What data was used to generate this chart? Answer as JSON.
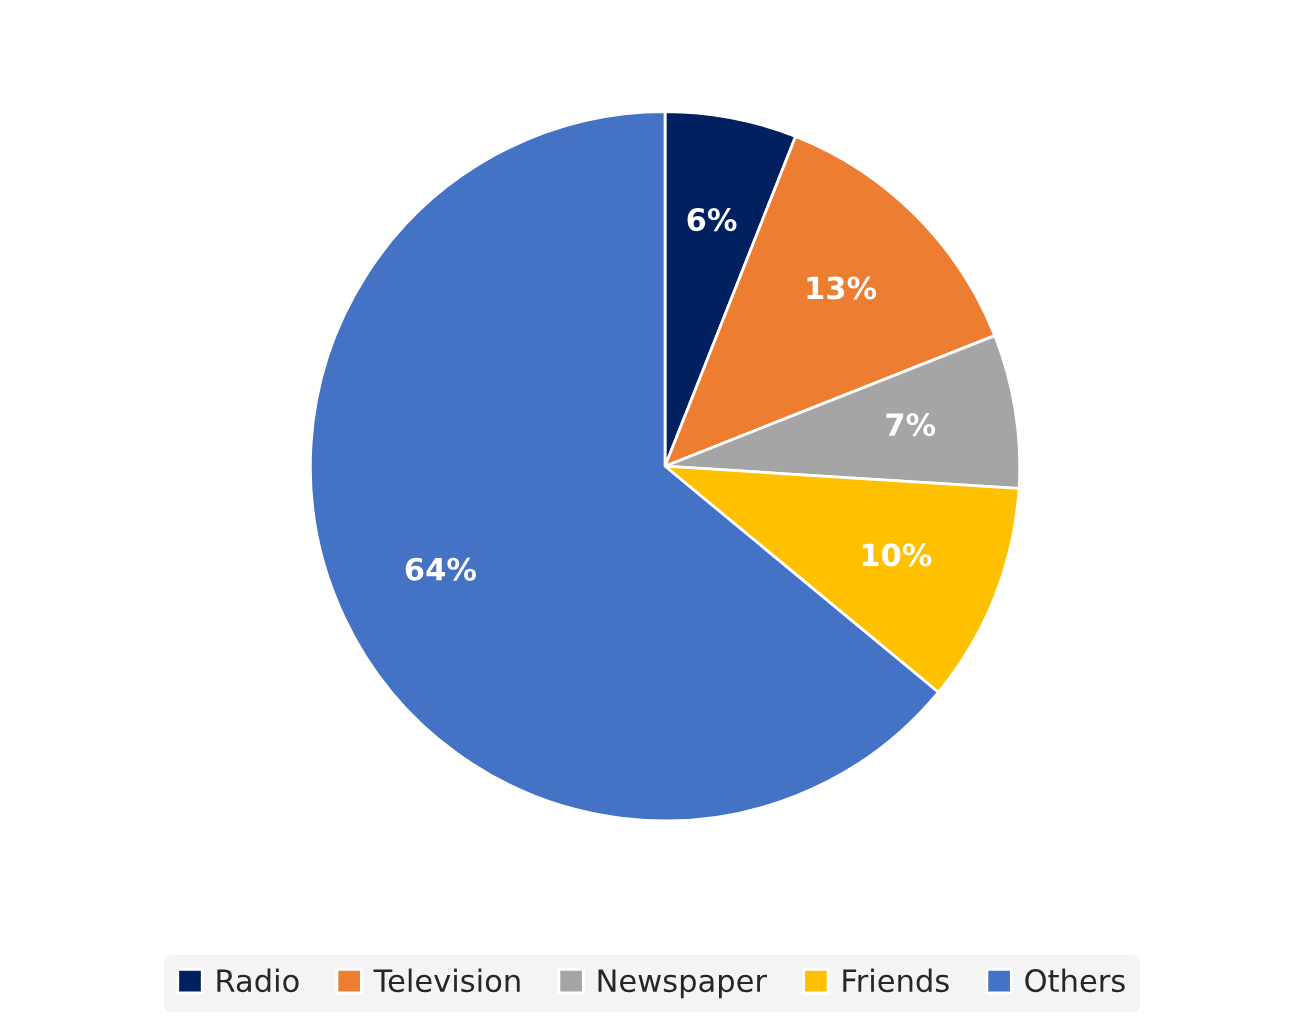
{
  "chart_data": {
    "type": "pie",
    "categories": [
      "Radio",
      "Television",
      "Newspaper",
      "Friends",
      "Others"
    ],
    "values": [
      6,
      13,
      7,
      10,
      64
    ],
    "value_labels": [
      "6%",
      "13%",
      "7%",
      "10%",
      "64%"
    ],
    "colors": [
      "#002060",
      "#ed7d31",
      "#a5a5a5",
      "#ffc000",
      "#4472c4"
    ],
    "legend": "bottom"
  }
}
